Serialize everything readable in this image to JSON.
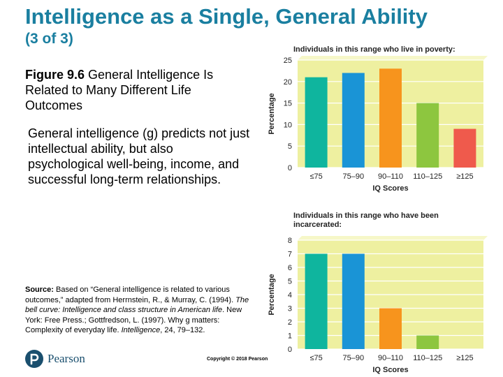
{
  "slide": {
    "title": "Intelligence as a Single, General Ability",
    "subtitle": "(3 of 3)",
    "figure_label": "Figure 9.6",
    "figure_caption": "General Intelligence Is Related to Many Different Life Outcomes",
    "body": "General intelligence (g) predicts not just intellectual ability, but also psychological well-being, income, and successful long-term relationships.",
    "source_label": "Source:",
    "source_text_1": "Based on “General intelligence is related to various outcomes,” adapted from Herrnstein, R., & Murray, C. (1994). ",
    "source_italic_1": "The bell curve: Intelligence and class structure in American life",
    "source_text_2": ". New York: Free Press.; Gottfredson, L. (1997). Why g matters: Complexity of everyday life. ",
    "source_italic_2": "Intelligence",
    "source_text_3": ", 24, 79–132.",
    "logo_text": "Pearson",
    "copyright": "Copyright © 2018 Pearson"
  },
  "colors": {
    "title": "#1a7fa0",
    "plot_bg": "#eef0a0",
    "grid": "#ffffff",
    "bars": [
      "#0fb59e",
      "#1a94d6",
      "#f7941d",
      "#8dc63f",
      "#ef5a4c"
    ]
  },
  "chart_data": [
    {
      "type": "bar",
      "title": "Individuals in this range who live in poverty:",
      "xlabel": "IQ Scores",
      "ylabel": "Percentage",
      "categories": [
        "≤75",
        "75–90",
        "90–110",
        "110–125",
        "≥125"
      ],
      "values": [
        21,
        22,
        23,
        15,
        9
      ],
      "ylim": [
        0,
        25
      ],
      "yticks": [
        0,
        5,
        10,
        15,
        20,
        25
      ],
      "grid": true,
      "legend": "none"
    },
    {
      "type": "bar",
      "title": "Individuals in this range who have been incarcerated:",
      "xlabel": "IQ Scores",
      "ylabel": "Percentage",
      "categories": [
        "≤75",
        "75–90",
        "90–110",
        "110–125",
        "≥125"
      ],
      "values": [
        7,
        7,
        3,
        1,
        0
      ],
      "ylim": [
        0,
        8
      ],
      "yticks": [
        0,
        1,
        2,
        3,
        4,
        5,
        6,
        7,
        8
      ],
      "grid": true,
      "legend": "none"
    }
  ]
}
